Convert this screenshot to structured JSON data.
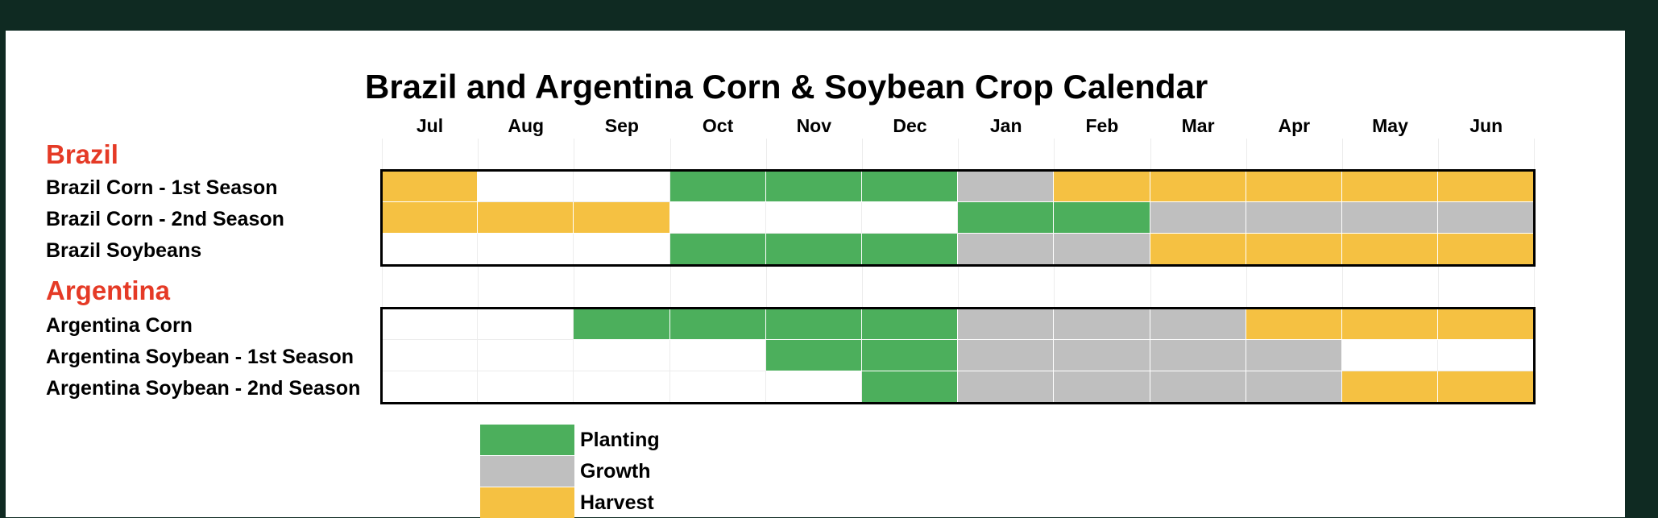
{
  "chart_data": {
    "type": "table",
    "title": "Brazil and Argentina Corn & Soybean Crop Calendar",
    "months": [
      "Jul",
      "Aug",
      "Sep",
      "Oct",
      "Nov",
      "Dec",
      "Jan",
      "Feb",
      "Mar",
      "Apr",
      "May",
      "Jun"
    ],
    "colors": {
      "P": "#4caf5c",
      "G": "#bfbfbf",
      "H": "#f5c142",
      "": "#ffffff"
    },
    "legend": [
      {
        "key": "P",
        "label": "Planting"
      },
      {
        "key": "G",
        "label": "Growth"
      },
      {
        "key": "H",
        "label": "Harvest"
      }
    ],
    "groups": [
      {
        "name": "Brazil",
        "rows": [
          {
            "label": "Brazil Corn - 1st Season",
            "cells": [
              "H",
              "",
              "",
              "P",
              "P",
              "P",
              "G",
              "H",
              "H",
              "H",
              "H",
              "H"
            ]
          },
          {
            "label": "Brazil Corn - 2nd Season",
            "cells": [
              "H",
              "H",
              "H",
              "",
              "",
              "",
              "P",
              "P",
              "G",
              "G",
              "G",
              "G"
            ]
          },
          {
            "label": "Brazil Soybeans",
            "cells": [
              "",
              "",
              "",
              "P",
              "P",
              "P",
              "G",
              "G",
              "H",
              "H",
              "H",
              "H"
            ]
          }
        ]
      },
      {
        "name": "Argentina",
        "rows": [
          {
            "label": "Argentina Corn",
            "cells": [
              "",
              "",
              "P",
              "P",
              "P",
              "P",
              "G",
              "G",
              "G",
              "H",
              "H",
              "H"
            ]
          },
          {
            "label": "Argentina Soybean - 1st Season",
            "cells": [
              "",
              "",
              "",
              "",
              "P",
              "P",
              "G",
              "G",
              "G",
              "G",
              "",
              ""
            ]
          },
          {
            "label": "Argentina Soybean - 2nd Season",
            "cells": [
              "",
              "",
              "",
              "",
              "",
              "P",
              "G",
              "G",
              "G",
              "G",
              "H",
              "H"
            ]
          }
        ]
      }
    ]
  }
}
